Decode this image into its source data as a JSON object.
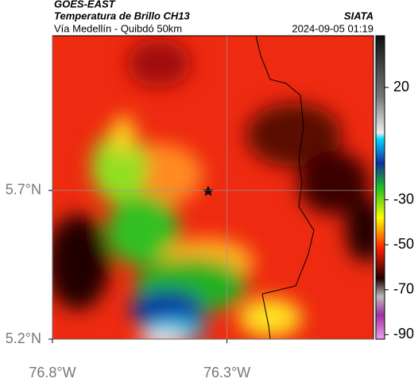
{
  "header": {
    "title": "GOES-EAST",
    "subtitle": "Temperatura de Brillo CH13",
    "source": "SIATA",
    "region": "Vía Medellín - Quibdó 50km",
    "timestamp": "2024-09-05 01:19"
  },
  "map": {
    "xlim": [
      -76.8,
      -75.88
    ],
    "ylim": [
      5.2,
      6.22
    ],
    "xticks": [
      {
        "value": -76.8,
        "label": "76.8°W"
      },
      {
        "value": -76.3,
        "label": "76.3°W"
      }
    ],
    "yticks": [
      {
        "value": 5.2,
        "label": "5.2°N"
      },
      {
        "value": 5.7,
        "label": "5.7°N"
      }
    ],
    "grid": true
  },
  "colorbar": {
    "range": [
      -92,
      43
    ],
    "ticks": [
      20,
      -30,
      -50,
      -70,
      -90
    ]
  }
}
